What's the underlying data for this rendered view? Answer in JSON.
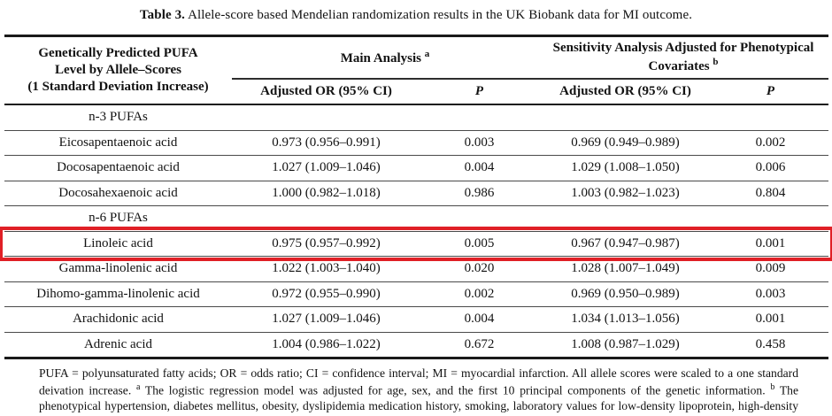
{
  "title": {
    "label": "Table 3.",
    "text": "Allele-score based Mendelian randomization results in the UK Biobank data for MI outcome."
  },
  "table": {
    "col1_header_lines": [
      "Genetically Predicted PUFA",
      "Level by Allele–Scores",
      "(1 Standard Deviation Increase)"
    ],
    "groups": [
      {
        "label": "Main Analysis",
        "superscript": "a"
      },
      {
        "label": "Sensitivity Analysis Adjusted for Phenotypical Covariates",
        "superscript": "b"
      }
    ],
    "subheaders": {
      "or": "Adjusted OR (95% CI)",
      "p": "P"
    },
    "rows": [
      {
        "type": "section",
        "label": "n-3 PUFAs"
      },
      {
        "type": "data",
        "label": "Eicosapentaenoic acid",
        "main_or": "0.973 (0.956–0.991)",
        "main_p": "0.003",
        "sens_or": "0.969 (0.949–0.989)",
        "sens_p": "0.002"
      },
      {
        "type": "data",
        "label": "Docosapentaenoic acid",
        "main_or": "1.027 (1.009–1.046)",
        "main_p": "0.004",
        "sens_or": "1.029 (1.008–1.050)",
        "sens_p": "0.006"
      },
      {
        "type": "data",
        "label": "Docosahexaenoic acid",
        "main_or": "1.000 (0.982–1.018)",
        "main_p": "0.986",
        "sens_or": "1.003 (0.982–1.023)",
        "sens_p": "0.804"
      },
      {
        "type": "section",
        "label": "n-6 PUFAs"
      },
      {
        "type": "data",
        "label": "Linoleic acid",
        "highlighted": true,
        "main_or": "0.975 (0.957–0.992)",
        "main_p": "0.005",
        "sens_or": "0.967 (0.947–0.987)",
        "sens_p": "0.001"
      },
      {
        "type": "data",
        "label": "Gamma-linolenic acid",
        "main_or": "1.022 (1.003–1.040)",
        "main_p": "0.020",
        "sens_or": "1.028 (1.007–1.049)",
        "sens_p": "0.009"
      },
      {
        "type": "data",
        "label": "Dihomo-gamma-linolenic acid",
        "main_or": "0.972 (0.955–0.990)",
        "main_p": "0.002",
        "sens_or": "0.969 (0.950–0.989)",
        "sens_p": "0.003"
      },
      {
        "type": "data",
        "label": "Arachidonic acid",
        "main_or": "1.027 (1.009–1.046)",
        "main_p": "0.004",
        "sens_or": "1.034 (1.013–1.056)",
        "sens_p": "0.001"
      },
      {
        "type": "data",
        "label": "Adrenic acid",
        "main_or": "1.004 (0.986–1.022)",
        "main_p": "0.672",
        "sens_or": "1.008 (0.987–1.029)",
        "sens_p": "0.458"
      }
    ]
  },
  "highlight": {
    "row_label": "Linoleic acid",
    "color": "#e02026"
  },
  "footnote": {
    "segment_1": "PUFA = polyunsaturated fatty acids; OR = odds ratio; CI = confidence interval; MI = myocardial infarction. All allele scores were scaled to a one standard deivation increase.",
    "superscript_a": "a",
    "segment_2": "The logistic regression model was adjusted for age, sex, and the first 10 principal components of the genetic information.",
    "superscript_b": "b",
    "segment_3": "The phenotypical hypertension, diabetes mellitus, obesity, dyslipidemia medication history, smoking, laboratory values for low-density lipoprotein, high-density lipoprotein, and triglycerides were added to the main model."
  }
}
